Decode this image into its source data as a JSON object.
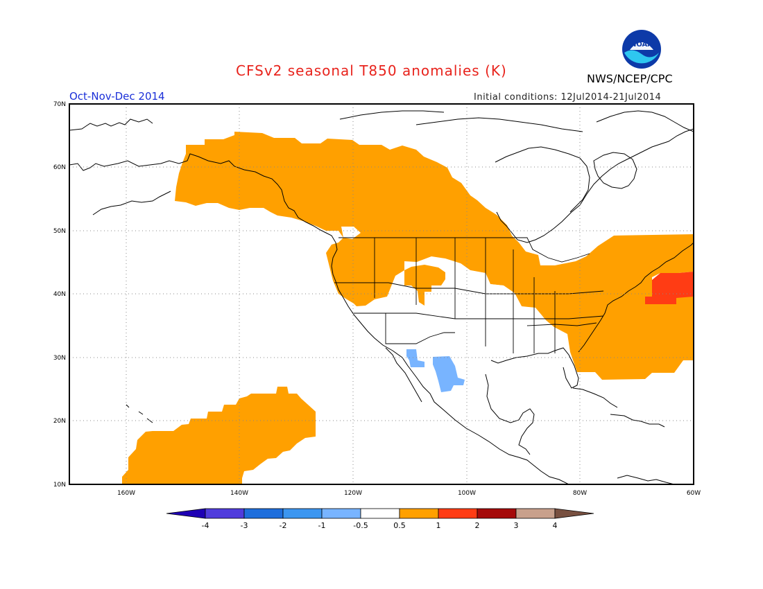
{
  "header": {
    "title": "CFSv2 seasonal T850 anomalies (K)",
    "org": "NWS/NCEP/CPC",
    "season": "Oct-Nov-Dec 2014",
    "initial_conditions": "Initial conditions: 12Jul2014-21Jul2014",
    "logo_text": "NOAA"
  },
  "map": {
    "lat_labels": [
      "70N",
      "60N",
      "50N",
      "40N",
      "30N",
      "20N",
      "10N"
    ],
    "lon_labels": [
      "160W",
      "140W",
      "120W",
      "100W",
      "80W",
      "60W"
    ],
    "grid": "dotted",
    "anomaly_regions": [
      {
        "name": "alaska-canada-warm-region",
        "category": "0.5 to 1",
        "color": "#ffa000"
      },
      {
        "name": "hawaii-pacific-warm-region",
        "category": "0.5 to 1",
        "color": "#ffa000"
      },
      {
        "name": "eastern-us-atlantic-warm-region",
        "category": "0.5 to 1",
        "color": "#ffa000"
      },
      {
        "name": "atlantic-strong-warm-region",
        "category": "1 to 2",
        "color": "#ff3c14"
      },
      {
        "name": "mexico-cool-region",
        "category": "-1 to -0.5",
        "color": "#78b4ff"
      }
    ]
  },
  "colorbar": {
    "tick_labels": [
      "-4",
      "-3",
      "-2",
      "-1",
      "-0.5",
      "0.5",
      "1",
      "2",
      "3",
      "4"
    ],
    "colors": [
      "#1e00b4",
      "#503cdc",
      "#1e6edc",
      "#3c96f0",
      "#78b4ff",
      "#ffffff",
      "#ffa000",
      "#ff3c14",
      "#a50a0a",
      "#c8a08c",
      "#785040"
    ]
  }
}
